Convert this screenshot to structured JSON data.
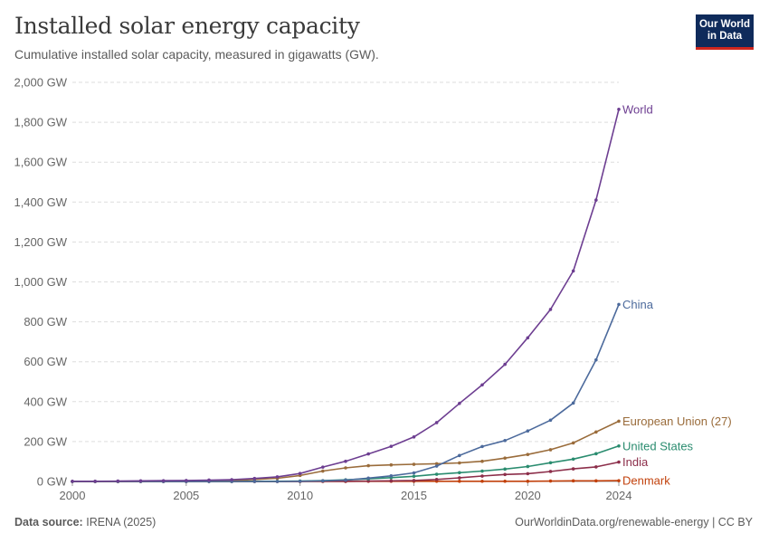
{
  "header": {
    "title": "Installed solar energy capacity",
    "subtitle": "Cumulative installed solar capacity, measured in gigawatts (GW).",
    "logo_line1": "Our World",
    "logo_line2": "in Data"
  },
  "footer": {
    "source_label": "Data source:",
    "source_value": "IRENA (2025)",
    "link": "OurWorldinData.org/renewable-energy | CC BY"
  },
  "chart_data": {
    "type": "line",
    "title": "Installed solar energy capacity",
    "xlabel": "",
    "ylabel": "",
    "xlim": [
      2000,
      2024
    ],
    "ylim": [
      0,
      2000
    ],
    "x_ticks": [
      2000,
      2005,
      2010,
      2015,
      2020,
      2024
    ],
    "y_ticks": [
      0,
      200,
      400,
      600,
      800,
      1000,
      1200,
      1400,
      1600,
      1800,
      2000
    ],
    "y_tick_labels": [
      "0 GW",
      "200 GW",
      "400 GW",
      "600 GW",
      "800 GW",
      "1,000 GW",
      "1,200 GW",
      "1,400 GW",
      "1,600 GW",
      "1,800 GW",
      "2,000 GW"
    ],
    "grid": true,
    "x": [
      2000,
      2001,
      2002,
      2003,
      2004,
      2005,
      2006,
      2007,
      2008,
      2009,
      2010,
      2011,
      2012,
      2013,
      2014,
      2015,
      2016,
      2017,
      2018,
      2019,
      2020,
      2021,
      2022,
      2023,
      2024
    ],
    "series": [
      {
        "name": "World",
        "color": "#6d3e91",
        "values": [
          1,
          1,
          2,
          3,
          4,
          5,
          7,
          9,
          15,
          23,
          40,
          72,
          101,
          138,
          176,
          223,
          295,
          391,
          484,
          587,
          720,
          862,
          1055,
          1410,
          1865
        ]
      },
      {
        "name": "China",
        "color": "#4c6a9c",
        "values": [
          0,
          0,
          0,
          0,
          0,
          0,
          0,
          0,
          0,
          0,
          1,
          3,
          7,
          17,
          28,
          43,
          77,
          130,
          175,
          205,
          253,
          307,
          393,
          609,
          887
        ]
      },
      {
        "name": "European Union (27)",
        "color": "#9a6c3b",
        "values": [
          0,
          0,
          0,
          0,
          1,
          2,
          3,
          5,
          10,
          16,
          30,
          52,
          68,
          79,
          83,
          86,
          89,
          93,
          101,
          117,
          135,
          159,
          193,
          248,
          302
        ]
      },
      {
        "name": "United States",
        "color": "#2a8c6f",
        "values": [
          0,
          0,
          0,
          0,
          0,
          0,
          0,
          0,
          1,
          1,
          2,
          4,
          8,
          13,
          19,
          26,
          36,
          44,
          52,
          62,
          75,
          94,
          112,
          139,
          178
        ]
      },
      {
        "name": "India",
        "color": "#8c2e4a",
        "values": [
          0,
          0,
          0,
          0,
          0,
          0,
          0,
          0,
          0,
          0,
          0,
          1,
          1,
          2,
          3,
          5,
          10,
          18,
          27,
          35,
          39,
          50,
          63,
          73,
          97
        ]
      },
      {
        "name": "Denmark",
        "color": "#c2410c",
        "values": [
          0,
          0,
          0,
          0,
          0,
          0,
          0,
          0,
          0,
          0,
          0,
          0,
          0,
          1,
          1,
          1,
          1,
          1,
          1,
          1,
          1,
          2,
          3,
          3,
          4
        ]
      }
    ]
  }
}
